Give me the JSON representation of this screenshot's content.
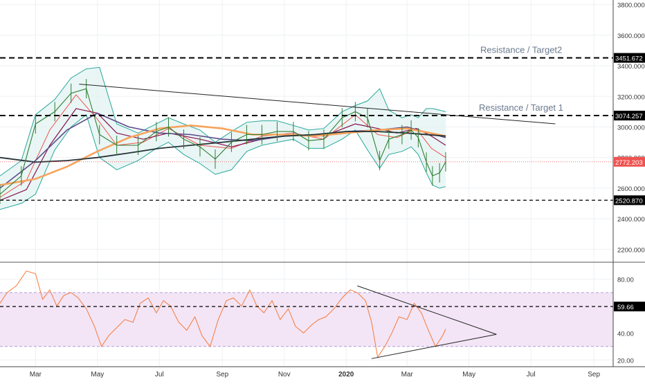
{
  "chart_data": [
    {
      "type": "line",
      "panel": "price",
      "x_axis": {
        "tick_labels": [
          "Mar",
          "May",
          "Jul",
          "Sep",
          "Nov",
          "2020",
          "Mar",
          "May",
          "Jul",
          "Sep"
        ],
        "tick_dates": [
          "2019-03",
          "2019-05",
          "2019-07",
          "2019-09",
          "2019-11",
          "2020-01",
          "2020-03",
          "2020-05",
          "2020-07",
          "2020-09"
        ],
        "range": [
          "2019-01-25",
          "2020-09-20"
        ]
      },
      "y_axis": {
        "position": "right",
        "ylim": [
          2120,
          3830
        ],
        "tick_labels": [
          "3800.000",
          "3600.000",
          "3400.000",
          "3200.000",
          "3000.000",
          "2800.000",
          "2600.000",
          "2400.000",
          "2200.000"
        ],
        "tick_values": [
          3800,
          3600,
          3400,
          3200,
          3000,
          2800,
          2600,
          2400,
          2200
        ]
      },
      "grid": true,
      "colors": {
        "price": "#2e7d32",
        "bollinger": "#26a69a",
        "bollinger_fill": "#e0f2f1",
        "ma_fast": "#ef5350",
        "ma_slow": "#880e4f",
        "ma_orange": "#f7a35c",
        "ma_purple": "#5c4b8a",
        "ma_long": "#263238",
        "levels": "#000000",
        "last_price": "#ef5350"
      },
      "levels": [
        {
          "value": 3451.672,
          "label": "3451.672",
          "style": "dashed-bold",
          "annotation": "Resistance / Target2"
        },
        {
          "value": 3074.257,
          "label": "3074.257",
          "style": "dashed-bold",
          "annotation": "Resistance / Target 1"
        },
        {
          "value": 2520.87,
          "label": "2520.870",
          "style": "dashed",
          "annotation": ""
        }
      ],
      "last_price": {
        "value": 2772.203,
        "label": "2772.203"
      },
      "trendline": {
        "points": [
          [
            "2019-04-13",
            3280
          ],
          [
            "2020-07-25",
            3020
          ]
        ]
      },
      "price_series": {
        "name": "price",
        "x": [
          "2019-01-25",
          "2019-02-15",
          "2019-03-01",
          "2019-03-20",
          "2019-04-05",
          "2019-04-20",
          "2019-05-03",
          "2019-05-20",
          "2019-06-10",
          "2019-06-28",
          "2019-07-10",
          "2019-07-25",
          "2019-08-10",
          "2019-08-25",
          "2019-09-10",
          "2019-09-25",
          "2019-10-10",
          "2019-10-25",
          "2019-11-10",
          "2019-11-25",
          "2019-12-10",
          "2019-12-28",
          "2020-01-10",
          "2020-01-22",
          "2020-02-03",
          "2020-02-12",
          "2020-02-25",
          "2020-03-05",
          "2020-03-12",
          "2020-03-20",
          "2020-03-26",
          "2020-04-02",
          "2020-04-08"
        ],
        "values": [
          2560,
          2680,
          3020,
          3100,
          3220,
          3250,
          2950,
          2880,
          2880,
          2970,
          3000,
          2920,
          2870,
          2790,
          2900,
          2950,
          2950,
          2970,
          2970,
          2910,
          2920,
          3060,
          3100,
          3060,
          2780,
          2920,
          2950,
          2980,
          2930,
          2770,
          2680,
          2700,
          2772
        ]
      },
      "bollinger": {
        "x": [
          "2019-01-25",
          "2019-02-15",
          "2019-03-01",
          "2019-03-20",
          "2019-04-05",
          "2019-04-20",
          "2019-05-03",
          "2019-05-20",
          "2019-06-10",
          "2019-06-28",
          "2019-07-10",
          "2019-07-25",
          "2019-08-10",
          "2019-08-25",
          "2019-09-10",
          "2019-09-25",
          "2019-10-10",
          "2019-10-25",
          "2019-11-10",
          "2019-11-25",
          "2019-12-10",
          "2019-12-28",
          "2020-01-10",
          "2020-01-22",
          "2020-02-03",
          "2020-02-12",
          "2020-02-25",
          "2020-03-05",
          "2020-03-12",
          "2020-03-20",
          "2020-03-26",
          "2020-04-02",
          "2020-04-08"
        ],
        "upper": [
          2680,
          2780,
          3080,
          3180,
          3320,
          3380,
          3390,
          3020,
          2960,
          3020,
          3060,
          3020,
          2980,
          2900,
          2970,
          3030,
          3040,
          3040,
          3010,
          2980,
          2990,
          3100,
          3140,
          3170,
          3250,
          3110,
          3060,
          3080,
          3060,
          3120,
          3120,
          3110,
          3100
        ],
        "lower": [
          2460,
          2500,
          2560,
          2850,
          3000,
          3080,
          2800,
          2720,
          2780,
          2860,
          2900,
          2820,
          2760,
          2690,
          2720,
          2840,
          2880,
          2900,
          2920,
          2860,
          2860,
          2920,
          2980,
          2850,
          2730,
          2820,
          2840,
          2870,
          2820,
          2700,
          2620,
          2600,
          2610
        ]
      },
      "moving_averages": [
        {
          "key": "ma_fast",
          "x": [
            "2019-01-25",
            "2019-02-20",
            "2019-03-15",
            "2019-04-10",
            "2019-05-01",
            "2019-05-20",
            "2019-06-15",
            "2019-07-10",
            "2019-08-10",
            "2019-09-10",
            "2019-10-10",
            "2019-11-10",
            "2019-12-10",
            "2020-01-10",
            "2020-02-01",
            "2020-02-20",
            "2020-03-10",
            "2020-03-25",
            "2020-04-08"
          ],
          "values": [
            2540,
            2650,
            2980,
            3210,
            3050,
            2880,
            2900,
            2990,
            2880,
            2860,
            2940,
            2960,
            2920,
            3080,
            2950,
            2930,
            2990,
            2860,
            2800
          ]
        },
        {
          "key": "ma_slow",
          "x": [
            "2019-01-25",
            "2019-02-20",
            "2019-03-15",
            "2019-04-10",
            "2019-05-01",
            "2019-05-20",
            "2019-06-15",
            "2019-07-10",
            "2019-08-10",
            "2019-09-10",
            "2019-10-10",
            "2019-11-10",
            "2019-12-10",
            "2020-01-10",
            "2020-02-01",
            "2020-02-20",
            "2020-03-10",
            "2020-03-25",
            "2020-04-08"
          ],
          "values": [
            2520,
            2590,
            2880,
            3120,
            3090,
            2960,
            2920,
            2960,
            2920,
            2870,
            2920,
            2950,
            2940,
            3020,
            2990,
            2960,
            2990,
            2940,
            2880
          ]
        },
        {
          "key": "ma_purple",
          "x": [
            "2019-01-25",
            "2019-03-01",
            "2019-04-01",
            "2019-05-01",
            "2019-06-01",
            "2019-07-01",
            "2019-08-01",
            "2019-09-01",
            "2019-10-01",
            "2019-11-01",
            "2019-12-01",
            "2020-01-01",
            "2020-02-01",
            "2020-03-01",
            "2020-04-08"
          ],
          "values": [
            2600,
            2780,
            2980,
            3090,
            3000,
            2960,
            2950,
            2920,
            2910,
            2940,
            2950,
            2970,
            2980,
            3000,
            2930
          ]
        },
        {
          "key": "ma_orange",
          "x": [
            "2019-01-25",
            "2019-03-01",
            "2019-04-01",
            "2019-05-01",
            "2019-06-01",
            "2019-07-01",
            "2019-08-01",
            "2019-09-01",
            "2019-10-01",
            "2019-11-01",
            "2019-12-01",
            "2020-01-01",
            "2020-02-01",
            "2020-03-01",
            "2020-04-08"
          ],
          "values": [
            2620,
            2660,
            2740,
            2840,
            2930,
            2990,
            3010,
            2990,
            2950,
            2950,
            2940,
            2960,
            2980,
            2990,
            2940
          ]
        },
        {
          "key": "ma_long",
          "x": [
            "2019-01-25",
            "2019-03-01",
            "2019-04-01",
            "2019-05-01",
            "2019-06-01",
            "2019-07-01",
            "2019-08-01",
            "2019-09-01",
            "2019-10-01",
            "2019-11-01",
            "2019-12-01",
            "2020-01-01",
            "2020-02-01",
            "2020-03-01",
            "2020-04-08"
          ],
          "values": [
            2800,
            2770,
            2780,
            2800,
            2830,
            2860,
            2880,
            2900,
            2920,
            2940,
            2950,
            2970,
            2970,
            2960,
            2940
          ]
        }
      ]
    },
    {
      "type": "line",
      "panel": "oscillator",
      "y_axis": {
        "position": "right",
        "ylim": [
          15,
          92
        ],
        "tick_labels": [
          "80.00",
          "40.00",
          "20.00"
        ],
        "tick_values": [
          80,
          40,
          20
        ]
      },
      "grid": true,
      "band": {
        "upper": 70,
        "lower": 30,
        "color": "#f3e5f5"
      },
      "level": {
        "value": 59.66,
        "label": "59.66"
      },
      "colors": {
        "series": "#f5793a",
        "level": "#000000",
        "band_line": "#b39ddb"
      },
      "series": {
        "x": [
          "2019-01-25",
          "2019-02-01",
          "2019-02-10",
          "2019-02-20",
          "2019-03-01",
          "2019-03-08",
          "2019-03-15",
          "2019-03-22",
          "2019-03-29",
          "2019-04-05",
          "2019-04-12",
          "2019-04-20",
          "2019-04-28",
          "2019-05-05",
          "2019-05-12",
          "2019-05-20",
          "2019-05-28",
          "2019-06-05",
          "2019-06-12",
          "2019-06-20",
          "2019-06-28",
          "2019-07-05",
          "2019-07-12",
          "2019-07-20",
          "2019-07-28",
          "2019-08-05",
          "2019-08-12",
          "2019-08-20",
          "2019-08-28",
          "2019-09-05",
          "2019-09-12",
          "2019-09-20",
          "2019-09-28",
          "2019-10-05",
          "2019-10-12",
          "2019-10-20",
          "2019-10-28",
          "2019-11-05",
          "2019-11-12",
          "2019-11-20",
          "2019-11-28",
          "2019-12-05",
          "2019-12-12",
          "2019-12-20",
          "2019-12-28",
          "2020-01-05",
          "2020-01-12",
          "2020-01-20",
          "2020-01-26",
          "2020-02-01",
          "2020-02-08",
          "2020-02-15",
          "2020-02-22",
          "2020-03-01",
          "2020-03-08",
          "2020-03-15",
          "2020-03-22",
          "2020-03-29",
          "2020-04-05",
          "2020-04-08"
        ],
        "values": [
          62,
          70,
          75,
          86,
          84,
          65,
          72,
          60,
          68,
          70,
          66,
          58,
          45,
          30,
          38,
          44,
          50,
          48,
          62,
          66,
          55,
          64,
          60,
          48,
          42,
          52,
          38,
          30,
          50,
          64,
          66,
          60,
          72,
          60,
          55,
          64,
          50,
          58,
          45,
          40,
          46,
          50,
          52,
          58,
          66,
          72,
          70,
          64,
          48,
          22,
          30,
          40,
          52,
          50,
          62,
          55,
          42,
          30,
          38,
          43
        ]
      },
      "triangle": {
        "upper_line": [
          [
            "2020-01-12",
            75
          ],
          [
            "2020-05-28",
            39
          ]
        ],
        "lower_line": [
          [
            "2020-01-26",
            21
          ],
          [
            "2020-05-28",
            39
          ]
        ]
      }
    }
  ]
}
